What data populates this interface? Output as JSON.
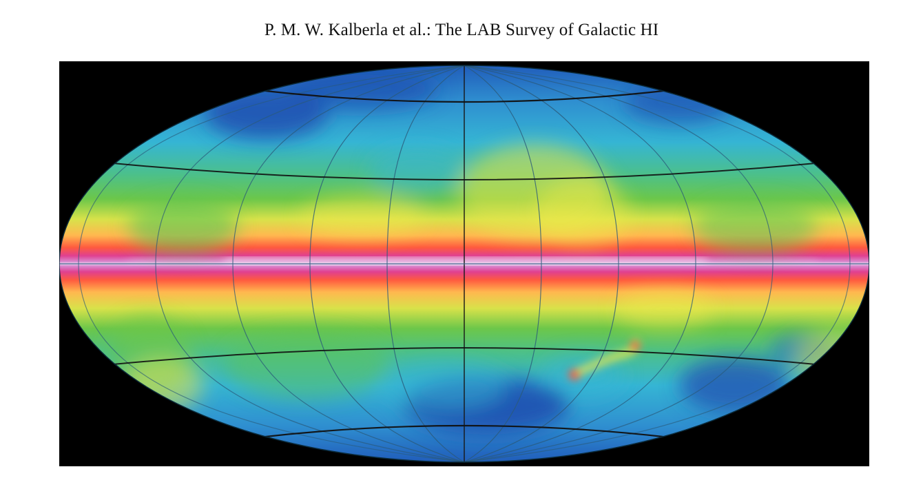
{
  "header": {
    "running_title": "P. M. W. Kalberla et al.: The LAB Survey of Galactic HI"
  },
  "figure": {
    "projection": "Aitoff (all-sky, Galactic coordinates)",
    "colormap": [
      "#ffffff",
      "#d98ad0",
      "#ff3f3f",
      "#ff9a4f",
      "#f0e84a",
      "#5cc356",
      "#35b5d4",
      "#1f57b8"
    ],
    "background_color": "#000000"
  }
}
